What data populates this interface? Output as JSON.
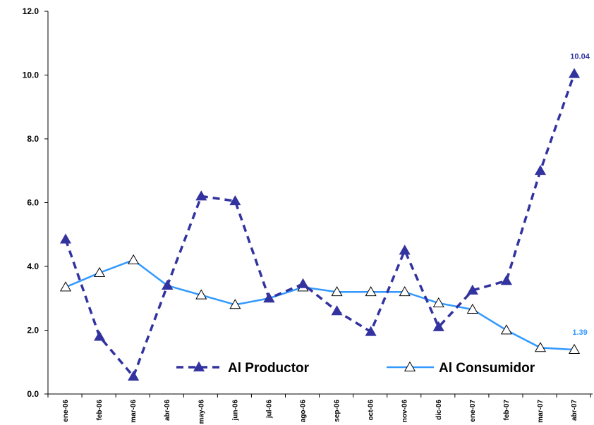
{
  "chart_data": {
    "type": "line",
    "title": "",
    "xlabel": "",
    "ylabel": "",
    "categories": [
      "ene-06",
      "feb-06",
      "mar-06",
      "abr-06",
      "may-06",
      "jun-06",
      "jul-06",
      "ago-06",
      "sep-06",
      "oct-06",
      "nov-06",
      "dic-06",
      "ene-07",
      "feb-07",
      "mar-07",
      "abr-07"
    ],
    "ylim": [
      0,
      12
    ],
    "yticks": [
      "0.0",
      "2.0",
      "4.0",
      "6.0",
      "8.0",
      "10.0",
      "12.0"
    ],
    "grid": false,
    "legend_position": "bottom-inside",
    "series": [
      {
        "name": "Al Productor",
        "color": "#3333a0",
        "line_style": "dashed",
        "marker": "filled-triangle",
        "values": [
          4.85,
          1.8,
          0.55,
          3.4,
          6.2,
          6.05,
          3.0,
          3.45,
          2.6,
          1.95,
          4.5,
          2.1,
          3.25,
          3.55,
          7.0,
          10.04
        ],
        "end_label": "10.04"
      },
      {
        "name": "Al Consumidor",
        "color": "#3399ff",
        "line_style": "solid",
        "marker": "hollow-triangle",
        "values": [
          3.35,
          3.8,
          4.2,
          3.4,
          3.1,
          2.8,
          3.0,
          3.35,
          3.2,
          3.2,
          3.2,
          2.85,
          2.65,
          2.0,
          1.45,
          1.39
        ],
        "end_label": "1.39"
      }
    ]
  }
}
